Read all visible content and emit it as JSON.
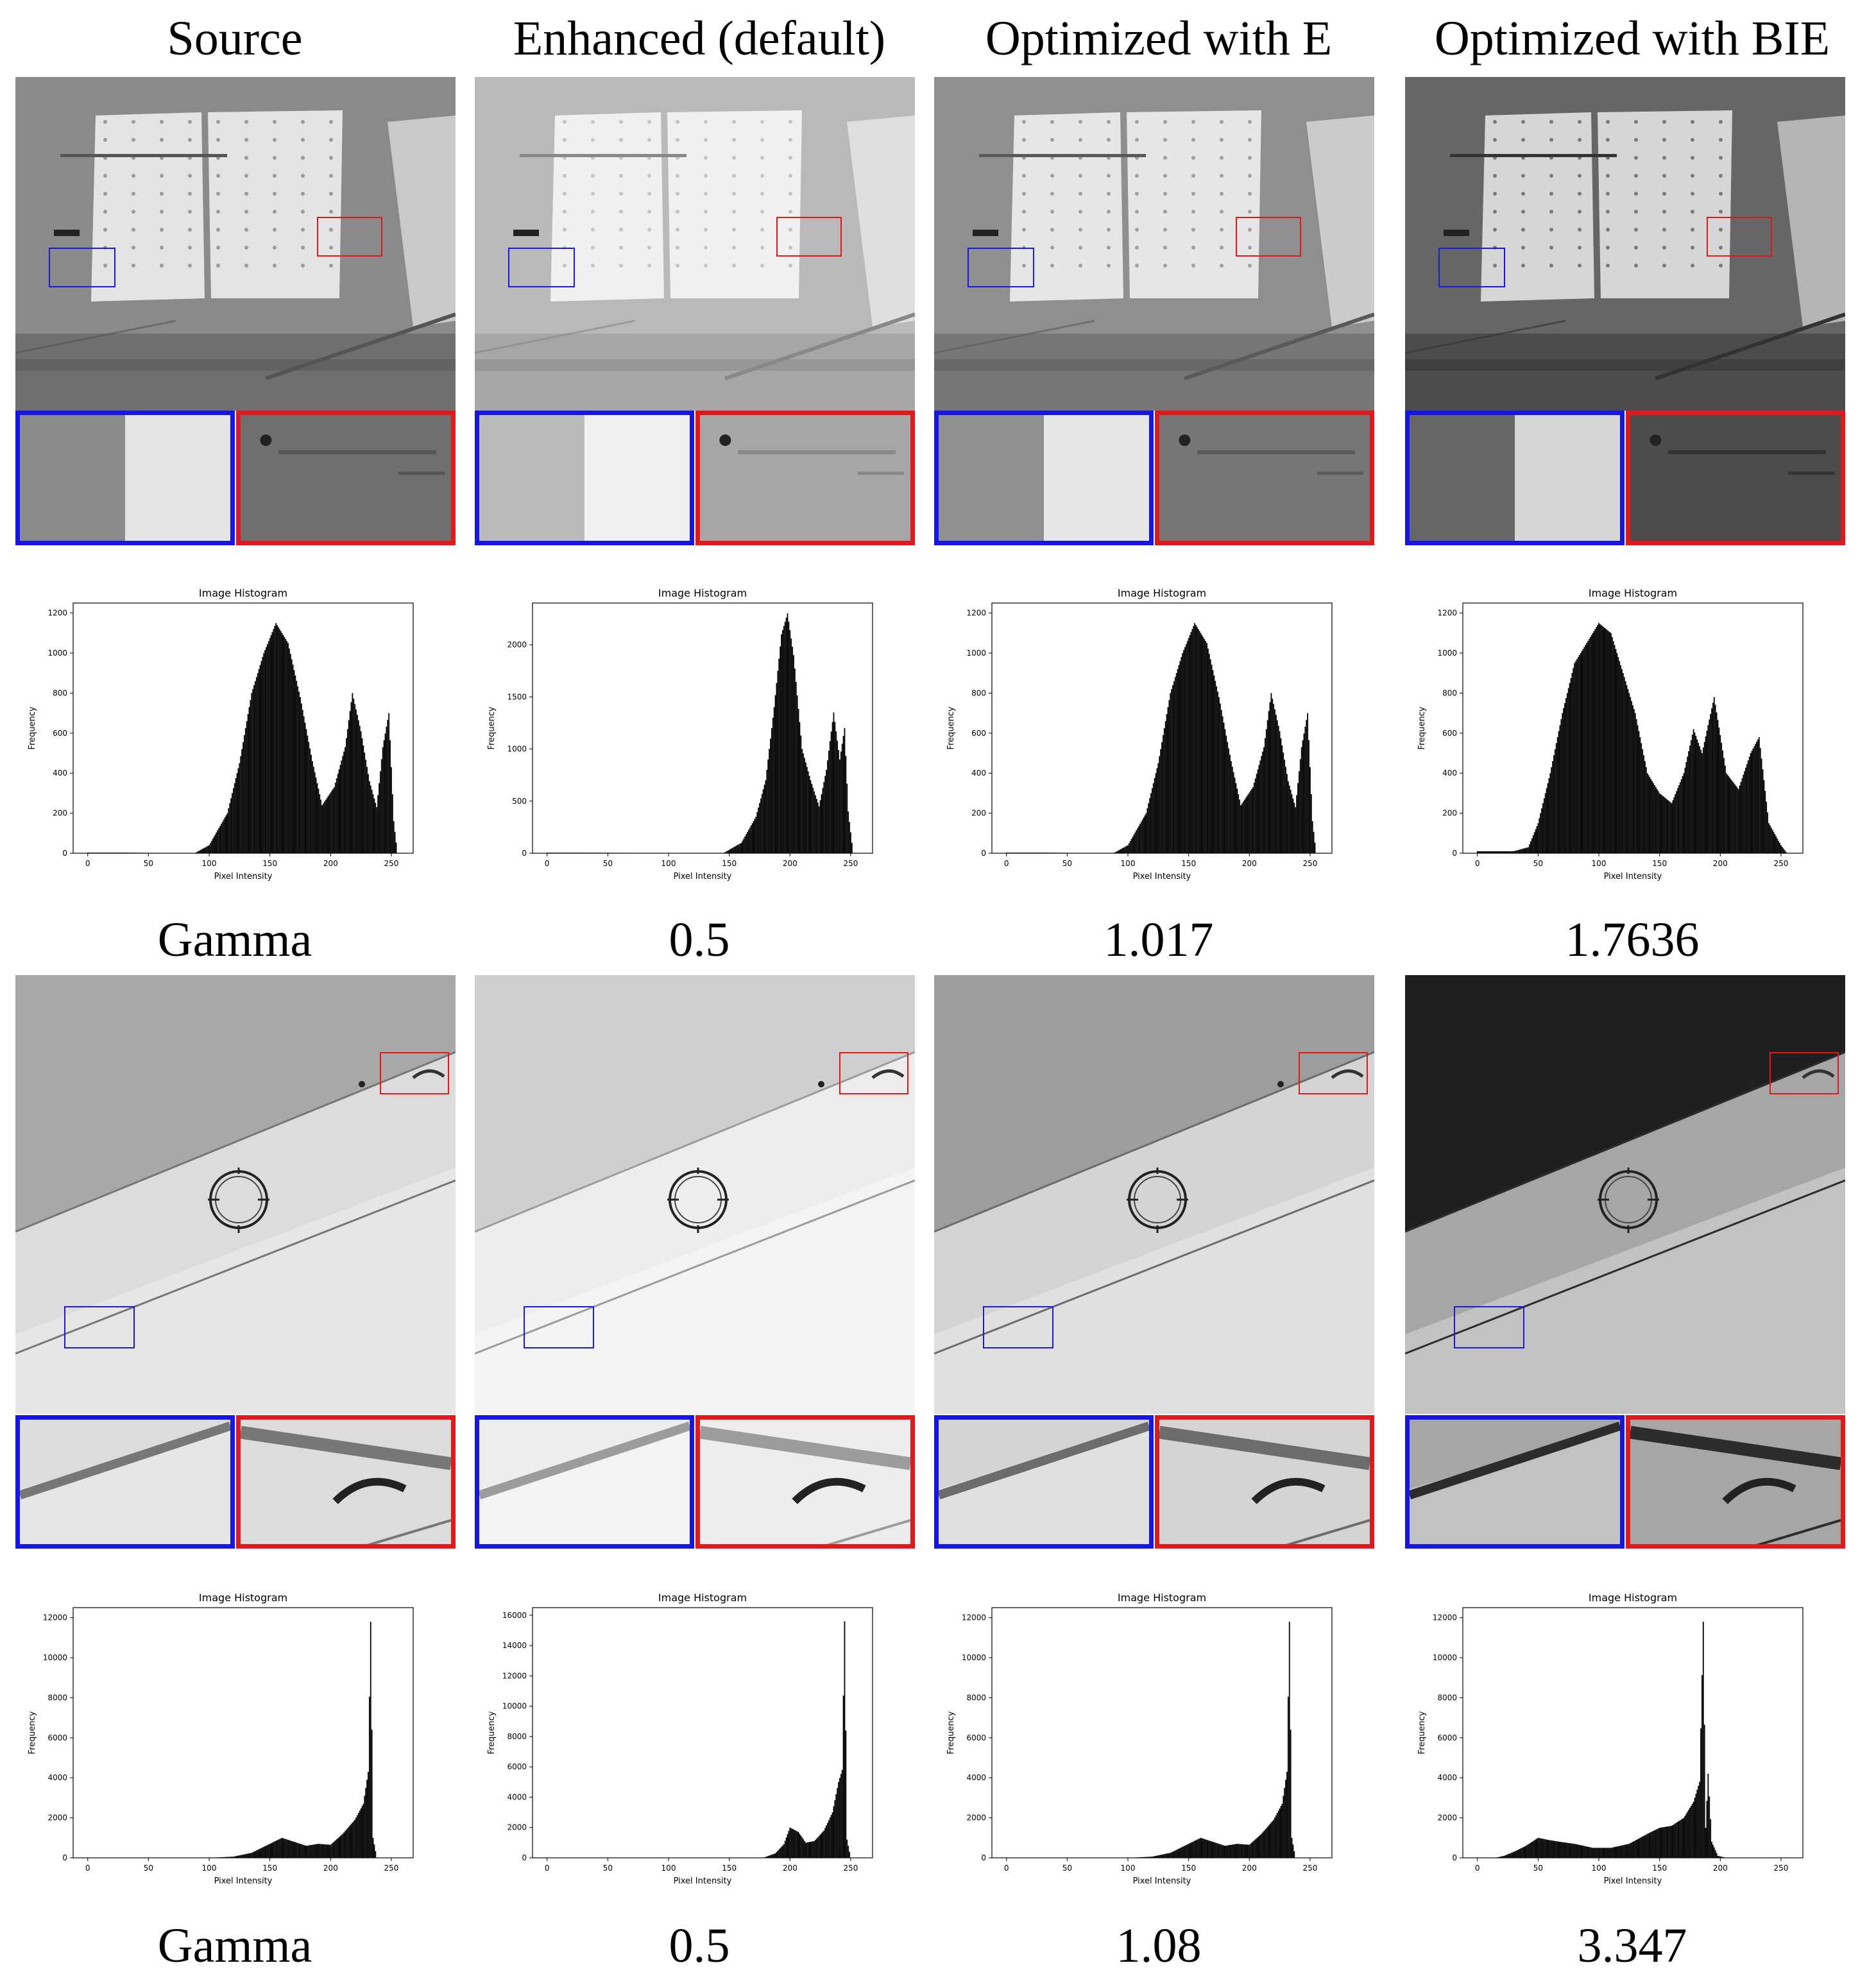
{
  "columns": [
    "Source",
    "Enhanced (default)",
    "Optimized with E",
    "Optimized with BIE"
  ],
  "rows": [
    {
      "scene": "solar-panels",
      "gamma_label": "Gamma",
      "gamma_values": [
        "0.5",
        "1.017",
        "1.7636"
      ]
    },
    {
      "scene": "aircraft-wing",
      "gamma_label": "Gamma",
      "gamma_values": [
        "0.5",
        "1.08",
        "3.347"
      ]
    }
  ],
  "roi_colors": {
    "blue": "#1515e6",
    "red": "#e01a1a"
  },
  "chart_data": [
    {
      "type": "bar",
      "title": "Image Histogram",
      "xlabel": "Pixel Intensity",
      "ylabel": "Frequency",
      "xlim": [
        -12,
        268
      ],
      "ylim": [
        0,
        1250
      ],
      "xticks": [
        0,
        50,
        100,
        150,
        200,
        250
      ],
      "yticks": [
        0,
        200,
        400,
        600,
        800,
        1000,
        1200
      ],
      "peaks": [
        [
          0,
          3
        ],
        [
          30,
          3
        ],
        [
          88,
          0
        ],
        [
          100,
          40
        ],
        [
          115,
          200
        ],
        [
          125,
          450
        ],
        [
          135,
          800
        ],
        [
          145,
          1000
        ],
        [
          155,
          1150
        ],
        [
          165,
          1050
        ],
        [
          175,
          780
        ],
        [
          185,
          460
        ],
        [
          193,
          240
        ],
        [
          203,
          330
        ],
        [
          212,
          530
        ],
        [
          218,
          800
        ],
        [
          225,
          610
        ],
        [
          232,
          360
        ],
        [
          238,
          230
        ],
        [
          243,
          530
        ],
        [
          248,
          700
        ],
        [
          252,
          160
        ],
        [
          255,
          0
        ]
      ]
    },
    {
      "type": "bar",
      "title": "Image Histogram",
      "xlabel": "Pixel Intensity",
      "ylabel": "Frequency",
      "xlim": [
        -12,
        268
      ],
      "ylim": [
        0,
        2400
      ],
      "xticks": [
        0,
        50,
        100,
        150,
        200,
        250
      ],
      "yticks": [
        0,
        500,
        1000,
        1500,
        2000
      ],
      "peaks": [
        [
          0,
          5
        ],
        [
          30,
          5
        ],
        [
          145,
          0
        ],
        [
          160,
          100
        ],
        [
          172,
          350
        ],
        [
          180,
          700
        ],
        [
          187,
          1400
        ],
        [
          193,
          2100
        ],
        [
          198,
          2300
        ],
        [
          203,
          1900
        ],
        [
          210,
          1000
        ],
        [
          217,
          700
        ],
        [
          224,
          450
        ],
        [
          230,
          800
        ],
        [
          236,
          1350
        ],
        [
          241,
          900
        ],
        [
          245,
          1200
        ],
        [
          248,
          400
        ],
        [
          252,
          0
        ]
      ]
    },
    {
      "type": "bar",
      "title": "Image Histogram",
      "xlabel": "Pixel Intensity",
      "ylabel": "Frequency",
      "xlim": [
        -12,
        268
      ],
      "ylim": [
        0,
        1250
      ],
      "xticks": [
        0,
        50,
        100,
        150,
        200,
        250
      ],
      "yticks": [
        0,
        200,
        400,
        600,
        800,
        1000,
        1200
      ],
      "peaks": [
        [
          0,
          3
        ],
        [
          30,
          3
        ],
        [
          88,
          0
        ],
        [
          100,
          40
        ],
        [
          115,
          200
        ],
        [
          125,
          450
        ],
        [
          135,
          800
        ],
        [
          145,
          1000
        ],
        [
          155,
          1150
        ],
        [
          165,
          1050
        ],
        [
          175,
          780
        ],
        [
          185,
          460
        ],
        [
          193,
          240
        ],
        [
          203,
          330
        ],
        [
          212,
          530
        ],
        [
          218,
          800
        ],
        [
          225,
          610
        ],
        [
          232,
          360
        ],
        [
          238,
          230
        ],
        [
          243,
          530
        ],
        [
          248,
          700
        ],
        [
          252,
          160
        ],
        [
          255,
          0
        ]
      ]
    },
    {
      "type": "bar",
      "title": "Image Histogram",
      "xlabel": "Pixel Intensity",
      "ylabel": "Frequency",
      "xlim": [
        -12,
        268
      ],
      "ylim": [
        0,
        1250
      ],
      "xticks": [
        0,
        50,
        100,
        150,
        200,
        250
      ],
      "yticks": [
        0,
        200,
        400,
        600,
        800,
        1000,
        1200
      ],
      "peaks": [
        [
          0,
          10
        ],
        [
          30,
          10
        ],
        [
          42,
          30
        ],
        [
          50,
          150
        ],
        [
          60,
          400
        ],
        [
          70,
          700
        ],
        [
          80,
          950
        ],
        [
          90,
          1050
        ],
        [
          100,
          1150
        ],
        [
          110,
          1100
        ],
        [
          120,
          900
        ],
        [
          130,
          700
        ],
        [
          140,
          400
        ],
        [
          150,
          300
        ],
        [
          160,
          250
        ],
        [
          170,
          400
        ],
        [
          178,
          620
        ],
        [
          185,
          500
        ],
        [
          195,
          780
        ],
        [
          205,
          400
        ],
        [
          215,
          320
        ],
        [
          225,
          500
        ],
        [
          232,
          580
        ],
        [
          240,
          150
        ],
        [
          250,
          40
        ],
        [
          255,
          0
        ]
      ]
    },
    {
      "type": "bar",
      "title": "Image Histogram",
      "xlabel": "Pixel Intensity",
      "ylabel": "Frequency",
      "xlim": [
        -12,
        268
      ],
      "ylim": [
        0,
        12500
      ],
      "xticks": [
        0,
        50,
        100,
        150,
        200,
        250
      ],
      "yticks": [
        0,
        2000,
        4000,
        6000,
        8000,
        10000,
        12000
      ],
      "peaks": [
        [
          0,
          5
        ],
        [
          30,
          5
        ],
        [
          100,
          0
        ],
        [
          120,
          60
        ],
        [
          135,
          250
        ],
        [
          150,
          700
        ],
        [
          160,
          1000
        ],
        [
          170,
          800
        ],
        [
          180,
          600
        ],
        [
          190,
          700
        ],
        [
          200,
          650
        ],
        [
          210,
          1200
        ],
        [
          220,
          1900
        ],
        [
          227,
          2700
        ],
        [
          231,
          4300
        ],
        [
          233,
          11800
        ],
        [
          235,
          1000
        ],
        [
          238,
          0
        ]
      ]
    },
    {
      "type": "bar",
      "title": "Image Histogram",
      "xlabel": "Pixel Intensity",
      "ylabel": "Frequency",
      "xlim": [
        -12,
        268
      ],
      "ylim": [
        0,
        16500
      ],
      "xticks": [
        0,
        50,
        100,
        150,
        200,
        250
      ],
      "yticks": [
        0,
        2000,
        4000,
        6000,
        8000,
        10000,
        12000,
        14000,
        16000
      ],
      "peaks": [
        [
          0,
          5
        ],
        [
          30,
          5
        ],
        [
          178,
          0
        ],
        [
          188,
          300
        ],
        [
          195,
          900
        ],
        [
          200,
          2000
        ],
        [
          207,
          1700
        ],
        [
          213,
          1000
        ],
        [
          220,
          1100
        ],
        [
          228,
          1800
        ],
        [
          235,
          3000
        ],
        [
          240,
          5000
        ],
        [
          243,
          5800
        ],
        [
          245,
          15600
        ],
        [
          247,
          1200
        ],
        [
          250,
          0
        ]
      ]
    },
    {
      "type": "bar",
      "title": "Image Histogram",
      "xlabel": "Pixel Intensity",
      "ylabel": "Frequency",
      "xlim": [
        -12,
        268
      ],
      "ylim": [
        0,
        12500
      ],
      "xticks": [
        0,
        50,
        100,
        150,
        200,
        250
      ],
      "yticks": [
        0,
        2000,
        4000,
        6000,
        8000,
        10000,
        12000
      ],
      "peaks": [
        [
          0,
          5
        ],
        [
          30,
          5
        ],
        [
          100,
          0
        ],
        [
          120,
          60
        ],
        [
          135,
          250
        ],
        [
          150,
          700
        ],
        [
          160,
          1000
        ],
        [
          170,
          800
        ],
        [
          180,
          600
        ],
        [
          190,
          700
        ],
        [
          200,
          650
        ],
        [
          210,
          1200
        ],
        [
          220,
          1900
        ],
        [
          227,
          2700
        ],
        [
          231,
          4300
        ],
        [
          233,
          11800
        ],
        [
          235,
          1000
        ],
        [
          238,
          0
        ]
      ]
    },
    {
      "type": "bar",
      "title": "Image Histogram",
      "xlabel": "Pixel Intensity",
      "ylabel": "Frequency",
      "xlim": [
        -12,
        268
      ],
      "ylim": [
        0,
        12500
      ],
      "xticks": [
        0,
        50,
        100,
        150,
        200,
        250
      ],
      "yticks": [
        0,
        2000,
        4000,
        6000,
        8000,
        10000,
        12000
      ],
      "peaks": [
        [
          0,
          5
        ],
        [
          15,
          5
        ],
        [
          22,
          100
        ],
        [
          30,
          300
        ],
        [
          40,
          600
        ],
        [
          50,
          1000
        ],
        [
          58,
          900
        ],
        [
          68,
          800
        ],
        [
          80,
          700
        ],
        [
          95,
          500
        ],
        [
          110,
          500
        ],
        [
          125,
          700
        ],
        [
          140,
          1200
        ],
        [
          150,
          1500
        ],
        [
          160,
          1600
        ],
        [
          170,
          2000
        ],
        [
          178,
          2800
        ],
        [
          183,
          3800
        ],
        [
          186,
          11800
        ],
        [
          188,
          1500
        ],
        [
          190,
          4200
        ],
        [
          193,
          800
        ],
        [
          198,
          100
        ],
        [
          205,
          0
        ]
      ]
    }
  ]
}
